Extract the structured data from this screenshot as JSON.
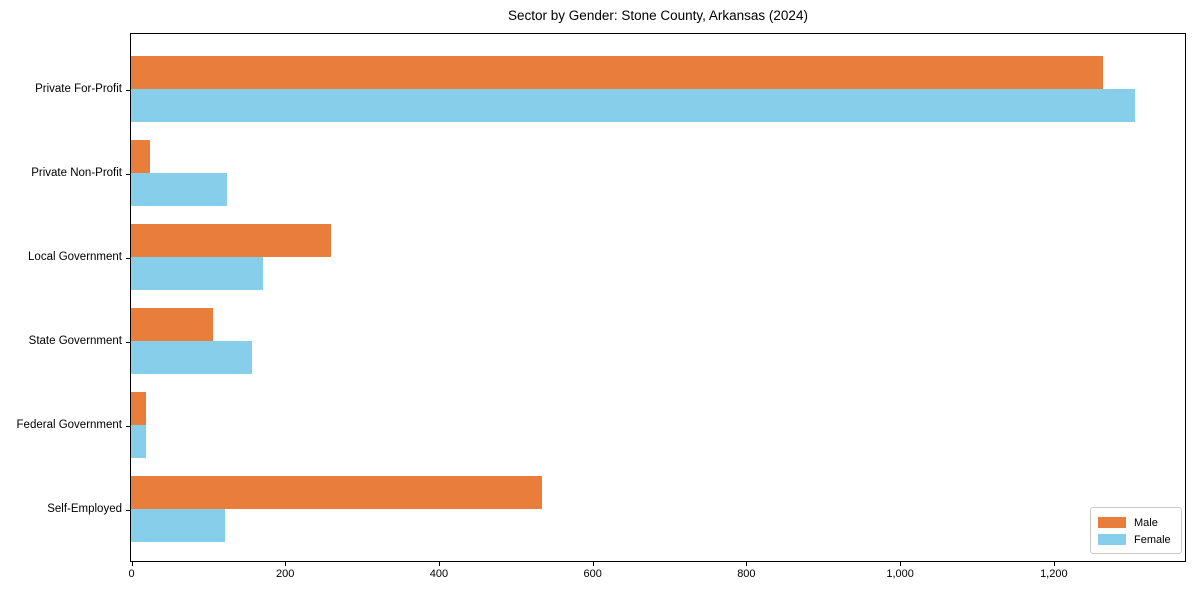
{
  "chart_data": {
    "type": "bar",
    "orientation": "horizontal",
    "title": "Sector by Gender: Stone County, Arkansas (2024)",
    "categories": [
      "Private For-Profit",
      "Private Non-Profit",
      "Local Government",
      "State Government",
      "Federal Government",
      "Self-Employed"
    ],
    "series": [
      {
        "name": "Male",
        "color": "#e87d3c",
        "values": [
          1263,
          25,
          260,
          106,
          20,
          534
        ]
      },
      {
        "name": "Female",
        "color": "#87ceeb",
        "values": [
          1305,
          125,
          171,
          157,
          19,
          122
        ]
      }
    ],
    "xlabel": "",
    "ylabel": "",
    "xlim": [
      0,
      1370
    ],
    "xticks": [
      0,
      200,
      400,
      600,
      800,
      1000,
      1200
    ],
    "xtick_labels": [
      "0",
      "200",
      "400",
      "600",
      "800",
      "1,000",
      "1,200"
    ],
    "legend": {
      "position": "lower-right",
      "entries": [
        "Male",
        "Female"
      ]
    },
    "grid": false,
    "frame_color": "#000000",
    "background_color": "#ffffff"
  }
}
